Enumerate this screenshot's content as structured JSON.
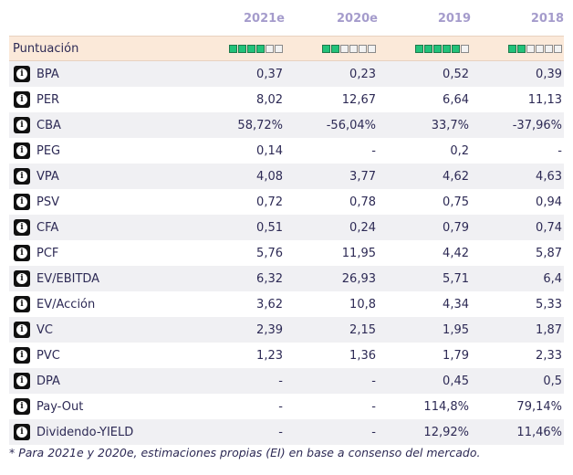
{
  "columns": [
    "2021e",
    "2020e",
    "2019",
    "2018"
  ],
  "score": {
    "label": "Puntuación",
    "max": 6,
    "values": [
      4,
      2,
      5,
      2
    ],
    "on_color": "#22c27a"
  },
  "rows": [
    {
      "label": "BPA",
      "values": [
        "0,37",
        "0,23",
        "0,52",
        "0,39"
      ]
    },
    {
      "label": "PER",
      "values": [
        "8,02",
        "12,67",
        "6,64",
        "11,13"
      ]
    },
    {
      "label": "CBA",
      "values": [
        "58,72%",
        "-56,04%",
        "33,7%",
        "-37,96%"
      ]
    },
    {
      "label": "PEG",
      "values": [
        "0,14",
        "-",
        "0,2",
        "-"
      ]
    },
    {
      "label": "VPA",
      "values": [
        "4,08",
        "3,77",
        "4,62",
        "4,63"
      ]
    },
    {
      "label": "PSV",
      "values": [
        "0,72",
        "0,78",
        "0,75",
        "0,94"
      ]
    },
    {
      "label": "CFA",
      "values": [
        "0,51",
        "0,24",
        "0,79",
        "0,74"
      ]
    },
    {
      "label": "PCF",
      "values": [
        "5,76",
        "11,95",
        "4,42",
        "5,87"
      ]
    },
    {
      "label": "EV/EBITDA",
      "values": [
        "6,32",
        "26,93",
        "5,71",
        "6,4"
      ]
    },
    {
      "label": "EV/Acción",
      "values": [
        "3,62",
        "10,8",
        "4,34",
        "5,33"
      ]
    },
    {
      "label": "VC",
      "values": [
        "2,39",
        "2,15",
        "1,95",
        "1,87"
      ]
    },
    {
      "label": "PVC",
      "values": [
        "1,23",
        "1,36",
        "1,79",
        "2,33"
      ]
    },
    {
      "label": "DPA",
      "values": [
        "-",
        "-",
        "0,45",
        "0,5"
      ]
    },
    {
      "label": "Pay-Out",
      "values": [
        "-",
        "-",
        "114,8%",
        "79,14%"
      ]
    },
    {
      "label": "Dividendo-YIELD",
      "values": [
        "-",
        "-",
        "12,92%",
        "11,46%"
      ]
    }
  ],
  "info_glyph": "i",
  "footnote": "* Para 2021e y 2020e, estimaciones propias (EI) en base a consenso del mercado."
}
